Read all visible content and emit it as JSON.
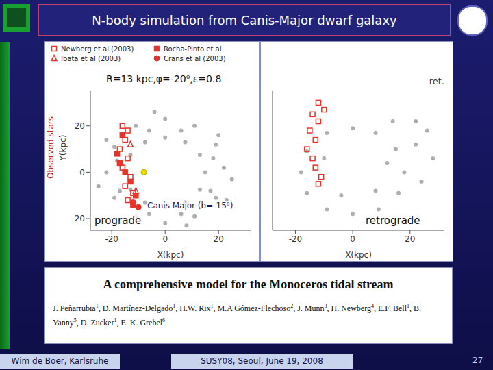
{
  "slide": {
    "title": "N-body simulation from Canis-Major dwarf galaxy",
    "paper": {
      "title": "A comprehensive model for the Monoceros tidal stream",
      "authors": [
        {
          "name": "J. Peñarrubia",
          "aff": 1
        },
        {
          "name": "D. Martínez-Delgado",
          "aff": 1
        },
        {
          "name": "H.W. Rix",
          "aff": 1
        },
        {
          "name": "M.A Gómez-Flechoso",
          "aff": 2
        },
        {
          "name": "J. Munn",
          "aff": 3
        },
        {
          "name": "H. Newberg",
          "aff": 4
        },
        {
          "name": "E.F. Bell",
          "aff": 1
        },
        {
          "name": "B. Yanny",
          "aff": 5
        },
        {
          "name": "D. Zucker",
          "aff": 1
        },
        {
          "name": "E. K. Grebel",
          "aff": 6
        }
      ]
    },
    "footer_left": "Wim de Boer, Karlsruhe",
    "footer_center": "SUSY08, Seoul, June 19, 2008",
    "page": 27
  },
  "chart_data": [
    {
      "type": "scatter",
      "x_label": "X(kpc)",
      "y_label": "Y(kpc)",
      "side_label": "Observed stars",
      "model_label": "R=13 kpc,φ=-20⁰,ε=0.8",
      "object_label": "Canis Major (b=-15⁰)",
      "direction_label": "prograde",
      "xlim": [
        -28,
        32
      ],
      "ylim": [
        -25,
        35
      ],
      "xticks": [
        -20,
        0,
        20
      ],
      "yticks": [
        -20,
        0,
        20
      ],
      "legend": "upper left",
      "series": [
        {
          "color": "#9a9a9a",
          "marker": "dot",
          "x": [
            15,
            13,
            7.5,
            0,
            -7.5,
            -13,
            -15,
            -13,
            -7.5,
            0,
            7.5,
            13,
            22,
            19,
            11,
            0,
            -11,
            -19,
            -22,
            -19,
            -11,
            0,
            11,
            19,
            18,
            6,
            -6,
            -18,
            -17,
            -6,
            6,
            17,
            25,
            20,
            -4,
            -22,
            -25,
            -14,
            8,
            23
          ],
          "y": [
            0,
            7.5,
            13,
            15,
            13,
            7.5,
            0,
            -7.5,
            -13,
            -15,
            -13,
            -7.5,
            2,
            12,
            20,
            23,
            20,
            11,
            0,
            -11,
            -19,
            -22,
            -19,
            -11,
            6,
            18,
            18,
            5,
            -8,
            -18,
            -18,
            -8,
            -3,
            16,
            26,
            14,
            -6,
            -21,
            -23,
            -12
          ]
        },
        {
          "color": "#f0e000",
          "marker": "circle",
          "x": [
            -8
          ],
          "y": [
            0
          ]
        },
        {
          "name": "Newberg et al (2003)",
          "color": "#e8322a",
          "marker": "open_square",
          "x": [
            -16,
            -14,
            -15,
            -17,
            -14,
            -16,
            -13,
            -15,
            -12,
            -14
          ],
          "y": [
            20,
            18,
            14,
            10,
            6,
            2,
            -2,
            -6,
            -9,
            -12
          ]
        },
        {
          "name": "Rocha-Pinto et al",
          "color": "#e8322a",
          "marker": "square",
          "x": [
            -16,
            -18,
            -17,
            -15,
            -13,
            -11,
            -12
          ],
          "y": [
            16,
            8,
            4,
            0,
            -4,
            -10,
            -14
          ]
        },
        {
          "name": "Ibata et al (2003)",
          "color": "#e8322a",
          "marker": "open_triangle",
          "x": [
            -13,
            -11
          ],
          "y": [
            12,
            -8
          ]
        },
        {
          "name": "Crans et al (2003)",
          "color": "#e8322a",
          "marker": "circle",
          "x": [
            -12,
            -10
          ],
          "y": [
            -13,
            -15
          ]
        }
      ]
    },
    {
      "type": "scatter",
      "x_label": "X(kpc)",
      "corner_label": "ret.",
      "direction_label": "retrograde",
      "xlim": [
        -28,
        32
      ],
      "ylim": [
        -25,
        35
      ],
      "xticks": [
        -20,
        0,
        20
      ],
      "yticks": [
        -20,
        0,
        20
      ],
      "tick_labels": "x",
      "series": [
        {
          "color": "#9a9a9a",
          "marker": "dot",
          "x": [
            18,
            15,
            8,
            0,
            -9,
            -16,
            -18,
            -16,
            -9,
            0,
            9,
            16,
            22,
            26,
            22,
            14,
            28,
            24,
            12,
            -10,
            -4,
            8
          ],
          "y": [
            0,
            10,
            17,
            19,
            17,
            9,
            0,
            -9,
            -16,
            -18,
            -16,
            -9,
            12,
            18,
            22,
            22,
            6,
            -4,
            4,
            6,
            -10,
            -8
          ]
        },
        {
          "color": "#e8322a",
          "marker": "open_square",
          "x": [
            -12,
            -10,
            -14,
            -12,
            -15,
            -13,
            -16,
            -14,
            -13,
            -11,
            -12
          ],
          "y": [
            30,
            27,
            25,
            22,
            18,
            14,
            10,
            6,
            2,
            -2,
            -5
          ]
        }
      ]
    }
  ]
}
